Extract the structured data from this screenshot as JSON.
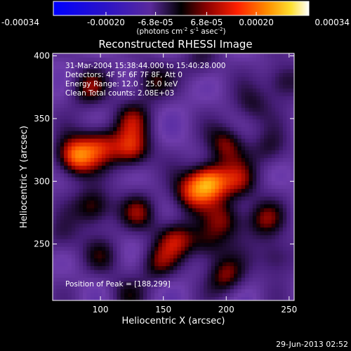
{
  "chart_data": {
    "type": "heatmap",
    "title": "Reconstructed RHESSI Image",
    "xlabel": "Heliocentric X (arcsec)",
    "ylabel": "Heliocentric Y (arcsec)",
    "xlim": [
      62,
      254
    ],
    "ylim": [
      205,
      402
    ],
    "x_ticks": [
      100,
      150,
      200,
      250
    ],
    "y_ticks": [
      250,
      300,
      350,
      400
    ],
    "x_tick_labels": [
      "100",
      "150",
      "200",
      "250"
    ],
    "y_tick_labels": [
      "250",
      "300",
      "350",
      "400"
    ],
    "colorbar": {
      "range": [
        -0.00034,
        0.00034
      ],
      "ticks": [
        -0.00034,
        -0.0002,
        -6.8e-05,
        6.8e-05,
        0.0002,
        0.00034
      ],
      "tick_labels": [
        "-0.00034",
        "-0.00020",
        "-6.8e-05",
        "6.8e-05",
        "0.00020",
        "0.00034"
      ],
      "unit_prefix": "(photons cm",
      "unit_exp1": "-2",
      "unit_mid1": " s",
      "unit_exp2": "-1",
      "unit_mid2": " asec",
      "unit_exp3": "-2",
      "unit_suffix": ")"
    },
    "annotations": [
      "31-Mar-2004 15:38:44.000 to 15:40:28.000",
      "Detectors: 4F 5F 6F 7F 8F, Att 0",
      "Energy Range: 12.0 - 25.0 keV",
      "Clean     Total counts: 2.08E+03"
    ],
    "peak_label": "Position of Peak = [188,299]",
    "peak": [
      188,
      299
    ],
    "sources": [
      {
        "x": 186,
        "y": 300,
        "intensity": 1.0
      },
      {
        "x": 170,
        "y": 290,
        "intensity": 0.55
      },
      {
        "x": 200,
        "y": 270,
        "intensity": 0.5
      },
      {
        "x": 160,
        "y": 255,
        "intensity": 0.55
      },
      {
        "x": 200,
        "y": 330,
        "intensity": 0.55
      },
      {
        "x": 210,
        "y": 300,
        "intensity": 0.5
      },
      {
        "x": 80,
        "y": 320,
        "intensity": 0.95
      },
      {
        "x": 100,
        "y": 330,
        "intensity": 0.6
      },
      {
        "x": 125,
        "y": 325,
        "intensity": 0.7
      },
      {
        "x": 125,
        "y": 350,
        "intensity": 0.45
      },
      {
        "x": 90,
        "y": 375,
        "intensity": 0.5
      },
      {
        "x": 140,
        "y": 380,
        "intensity": 0.45
      },
      {
        "x": 95,
        "y": 280,
        "intensity": 0.6
      },
      {
        "x": 130,
        "y": 275,
        "intensity": 0.45
      },
      {
        "x": 145,
        "y": 235,
        "intensity": 0.45
      },
      {
        "x": 185,
        "y": 250,
        "intensity": 0.45
      },
      {
        "x": 200,
        "y": 225,
        "intensity": 0.55
      },
      {
        "x": 230,
        "y": 270,
        "intensity": 0.5
      },
      {
        "x": 240,
        "y": 240,
        "intensity": 0.4
      },
      {
        "x": 235,
        "y": 325,
        "intensity": 0.35
      },
      {
        "x": 220,
        "y": 360,
        "intensity": 0.35
      },
      {
        "x": 245,
        "y": 380,
        "intensity": 0.45
      },
      {
        "x": 180,
        "y": 395,
        "intensity": 0.3
      },
      {
        "x": 100,
        "y": 240,
        "intensity": 0.3
      },
      {
        "x": 120,
        "y": 210,
        "intensity": 0.3
      },
      {
        "x": 70,
        "y": 255,
        "intensity": 0.3
      }
    ]
  },
  "footer": {
    "timestamp": "29-Jun-2013 02:52"
  }
}
